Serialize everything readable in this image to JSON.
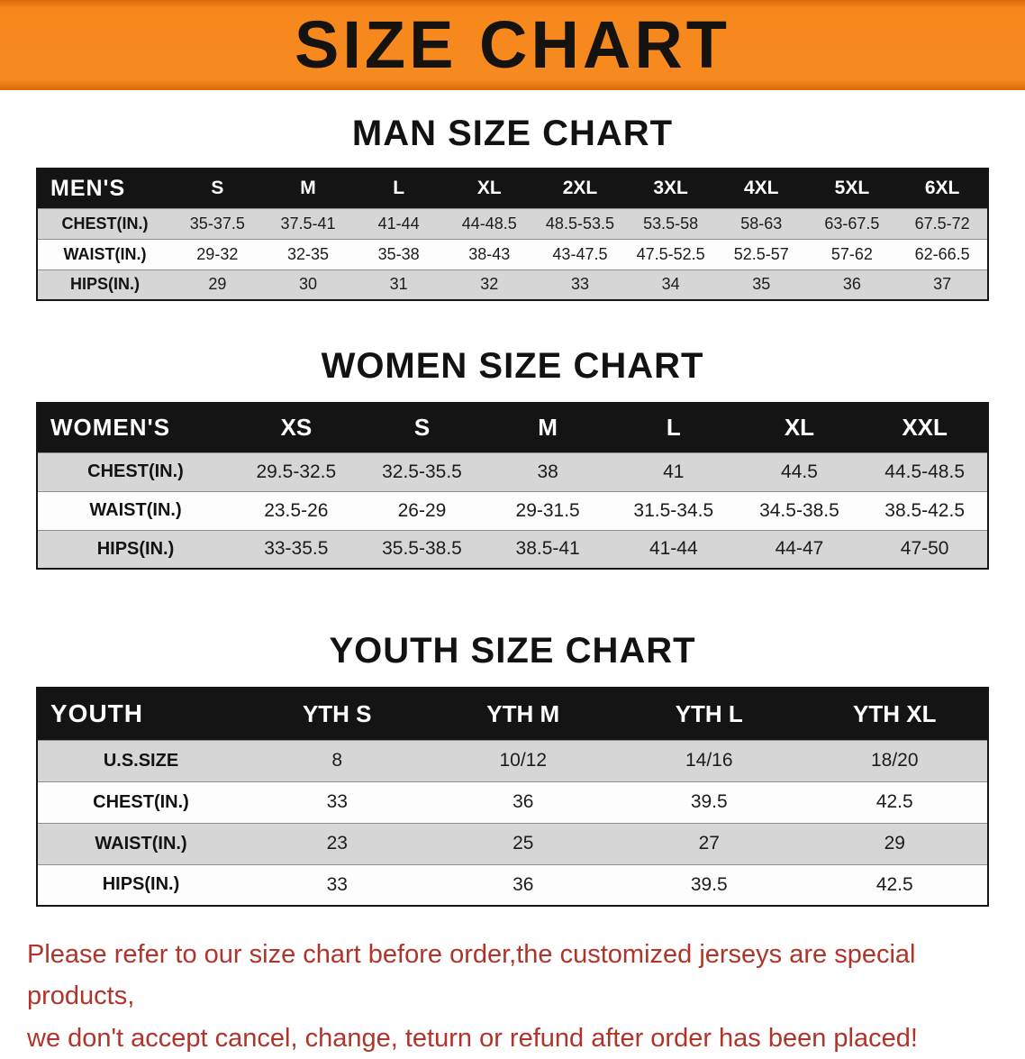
{
  "banner": {
    "title": "SIZE CHART"
  },
  "chart_data": [
    {
      "type": "table",
      "title": "MAN SIZE CHART",
      "group_label": "MEN'S",
      "columns": [
        "S",
        "M",
        "L",
        "XL",
        "2XL",
        "3XL",
        "4XL",
        "5XL",
        "6XL"
      ],
      "rows": [
        {
          "label": "CHEST(IN.)",
          "values": [
            "35-37.5",
            "37.5-41",
            "41-44",
            "44-48.5",
            "48.5-53.5",
            "53.5-58",
            "58-63",
            "63-67.5",
            "67.5-72"
          ]
        },
        {
          "label": "WAIST(IN.)",
          "values": [
            "29-32",
            "32-35",
            "35-38",
            "38-43",
            "43-47.5",
            "47.5-52.5",
            "52.5-57",
            "57-62",
            "62-66.5"
          ]
        },
        {
          "label": "HIPS(IN.)",
          "values": [
            "29",
            "30",
            "31",
            "32",
            "33",
            "34",
            "35",
            "36",
            "37"
          ]
        }
      ]
    },
    {
      "type": "table",
      "title": "WOMEN SIZE CHART",
      "group_label": "WOMEN'S",
      "columns": [
        "XS",
        "S",
        "M",
        "L",
        "XL",
        "XXL"
      ],
      "rows": [
        {
          "label": "CHEST(IN.)",
          "values": [
            "29.5-32.5",
            "32.5-35.5",
            "38",
            "41",
            "44.5",
            "44.5-48.5"
          ]
        },
        {
          "label": "WAIST(IN.)",
          "values": [
            "23.5-26",
            "26-29",
            "29-31.5",
            "31.5-34.5",
            "34.5-38.5",
            "38.5-42.5"
          ]
        },
        {
          "label": "HIPS(IN.)",
          "values": [
            "33-35.5",
            "35.5-38.5",
            "38.5-41",
            "41-44",
            "44-47",
            "47-50"
          ]
        }
      ]
    },
    {
      "type": "table",
      "title": "YOUTH SIZE CHART",
      "group_label": "YOUTH",
      "columns": [
        "YTH S",
        "YTH M",
        "YTH L",
        "YTH XL"
      ],
      "rows": [
        {
          "label": "U.S.SIZE",
          "values": [
            "8",
            "10/12",
            "14/16",
            "18/20"
          ]
        },
        {
          "label": "CHEST(IN.)",
          "values": [
            "33",
            "36",
            "39.5",
            "42.5"
          ]
        },
        {
          "label": "WAIST(IN.)",
          "values": [
            "23",
            "25",
            "27",
            "29"
          ]
        },
        {
          "label": "HIPS(IN.)",
          "values": [
            "33",
            "36",
            "39.5",
            "42.5"
          ]
        }
      ]
    }
  ],
  "footer": {
    "line1": "Please refer to our size chart before order,the customized jerseys are special products,",
    "line2": "we don't accept cancel, change, teturn or refund after order has been placed!"
  },
  "colors": {
    "banner_orange": "#F78A1E",
    "table_header_black": "#141414",
    "row_gray": "#D6D6D6",
    "row_white": "#FDFDFD",
    "disclaimer_red": "#B1342B"
  }
}
